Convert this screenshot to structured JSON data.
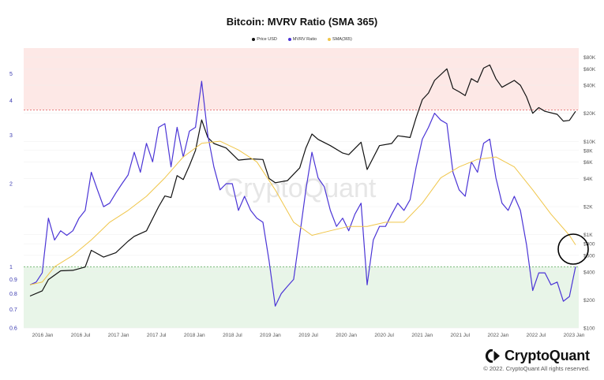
{
  "chart_data": {
    "type": "line",
    "title": "Bitcoin: MVRV Ratio (SMA 365)",
    "watermark": "CryptoQuant",
    "legend": [
      {
        "name": "Price USD",
        "color": "#111111"
      },
      {
        "name": "MVRV Ratio",
        "color": "#4b35d6"
      },
      {
        "name": "SMA(365)",
        "color": "#f0c64a"
      }
    ],
    "zones": [
      {
        "from": 3.7,
        "to": 6.2,
        "color": "#fde8e6",
        "line_color": "#e05555"
      },
      {
        "from": 0.6,
        "to": 1.0,
        "color": "#e8f5e8",
        "line_color": "#5aaa5a"
      }
    ],
    "x_ticks": [
      "2016 Jan",
      "2016 Jul",
      "2017 Jan",
      "2017 Jul",
      "2018 Jan",
      "2018 Jul",
      "2019 Jan",
      "2019 Jul",
      "2020 Jan",
      "2020 Jul",
      "2021 Jan",
      "2021 Jul",
      "2022 Jan",
      "2022 Jul",
      "2023 Jan"
    ],
    "x_range": [
      "2015-08",
      "2023-01"
    ],
    "y_left": {
      "label": "MVRV Ratio",
      "scale": "log",
      "range": [
        0.6,
        6.2
      ],
      "ticks": [
        {
          "v": 0.6,
          "l": "0.6"
        },
        {
          "v": 0.7,
          "l": "0.7"
        },
        {
          "v": 0.8,
          "l": "0.8"
        },
        {
          "v": 0.9,
          "l": "0.9"
        },
        {
          "v": 1,
          "l": "1"
        },
        {
          "v": 2,
          "l": "2"
        },
        {
          "v": 3,
          "l": "3"
        },
        {
          "v": 4,
          "l": "4"
        },
        {
          "v": 5,
          "l": "5"
        }
      ]
    },
    "y_right": {
      "label": "Price USD",
      "scale": "log",
      "range": [
        100,
        100000
      ],
      "ticks": [
        {
          "v": 100,
          "l": "$100"
        },
        {
          "v": 200,
          "l": "$200"
        },
        {
          "v": 400,
          "l": "$400"
        },
        {
          "v": 600,
          "l": "$600"
        },
        {
          "v": 800,
          "l": "$800"
        },
        {
          "v": 1000,
          "l": "$1K"
        },
        {
          "v": 2000,
          "l": "$2K"
        },
        {
          "v": 4000,
          "l": "$4K"
        },
        {
          "v": 6000,
          "l": "$6K"
        },
        {
          "v": 8000,
          "l": "$8K"
        },
        {
          "v": 10000,
          "l": "$10K"
        },
        {
          "v": 20000,
          "l": "$20K"
        },
        {
          "v": 40000,
          "l": "$40K"
        },
        {
          "v": 60000,
          "l": "$60K"
        },
        {
          "v": 80000,
          "l": "$80K"
        }
      ]
    },
    "series": [
      {
        "name": "Price USD",
        "axis": "right",
        "color": "#111111",
        "points": [
          [
            "2015-08",
            220
          ],
          [
            "2015-10",
            250
          ],
          [
            "2015-11",
            330
          ],
          [
            "2016-01",
            410
          ],
          [
            "2016-03",
            415
          ],
          [
            "2016-05",
            450
          ],
          [
            "2016-06",
            680
          ],
          [
            "2016-08",
            575
          ],
          [
            "2016-10",
            640
          ],
          [
            "2016-12",
            850
          ],
          [
            "2017-01",
            960
          ],
          [
            "2017-03",
            1100
          ],
          [
            "2017-05",
            2000
          ],
          [
            "2017-06",
            2600
          ],
          [
            "2017-07",
            2500
          ],
          [
            "2017-08",
            4300
          ],
          [
            "2017-09",
            3900
          ],
          [
            "2017-10",
            5500
          ],
          [
            "2017-11",
            8000
          ],
          [
            "2017-12",
            17000
          ],
          [
            "2018-01",
            11000
          ],
          [
            "2018-02",
            9500
          ],
          [
            "2018-04",
            8500
          ],
          [
            "2018-06",
            6300
          ],
          [
            "2018-08",
            6500
          ],
          [
            "2018-10",
            6400
          ],
          [
            "2018-11",
            4000
          ],
          [
            "2018-12",
            3600
          ],
          [
            "2019-02",
            3800
          ],
          [
            "2019-04",
            5200
          ],
          [
            "2019-05",
            8500
          ],
          [
            "2019-06",
            12000
          ],
          [
            "2019-07",
            10500
          ],
          [
            "2019-09",
            9000
          ],
          [
            "2019-11",
            7500
          ],
          [
            "2019-12",
            7200
          ],
          [
            "2020-02",
            9800
          ],
          [
            "2020-03",
            5000
          ],
          [
            "2020-05",
            9000
          ],
          [
            "2020-07",
            9500
          ],
          [
            "2020-08",
            11500
          ],
          [
            "2020-10",
            11000
          ],
          [
            "2020-11",
            18000
          ],
          [
            "2020-12",
            28000
          ],
          [
            "2021-01",
            33000
          ],
          [
            "2021-02",
            45000
          ],
          [
            "2021-04",
            60000
          ],
          [
            "2021-05",
            37000
          ],
          [
            "2021-06",
            34000
          ],
          [
            "2021-07",
            31000
          ],
          [
            "2021-08",
            47000
          ],
          [
            "2021-09",
            43000
          ],
          [
            "2021-10",
            61000
          ],
          [
            "2021-11",
            66000
          ],
          [
            "2021-12",
            47000
          ],
          [
            "2022-01",
            38000
          ],
          [
            "2022-03",
            45000
          ],
          [
            "2022-04",
            40000
          ],
          [
            "2022-05",
            30000
          ],
          [
            "2022-06",
            20000
          ],
          [
            "2022-07",
            23000
          ],
          [
            "2022-08",
            21000
          ],
          [
            "2022-10",
            19500
          ],
          [
            "2022-11",
            16500
          ],
          [
            "2022-12",
            16800
          ],
          [
            "2023-01",
            21000
          ]
        ]
      },
      {
        "name": "MVRV Ratio",
        "axis": "left",
        "color": "#4b35d6",
        "points": [
          [
            "2015-08",
            0.86
          ],
          [
            "2015-09",
            0.88
          ],
          [
            "2015-10",
            0.95
          ],
          [
            "2015-11",
            1.5
          ],
          [
            "2015-12",
            1.25
          ],
          [
            "2016-01",
            1.35
          ],
          [
            "2016-02",
            1.3
          ],
          [
            "2016-03",
            1.35
          ],
          [
            "2016-04",
            1.5
          ],
          [
            "2016-05",
            1.6
          ],
          [
            "2016-06",
            2.2
          ],
          [
            "2016-07",
            1.9
          ],
          [
            "2016-08",
            1.65
          ],
          [
            "2016-09",
            1.7
          ],
          [
            "2016-10",
            1.85
          ],
          [
            "2016-11",
            2.0
          ],
          [
            "2016-12",
            2.15
          ],
          [
            "2017-01",
            2.6
          ],
          [
            "2017-02",
            2.2
          ],
          [
            "2017-03",
            2.8
          ],
          [
            "2017-04",
            2.4
          ],
          [
            "2017-05",
            3.2
          ],
          [
            "2017-06",
            3.3
          ],
          [
            "2017-07",
            2.3
          ],
          [
            "2017-08",
            3.2
          ],
          [
            "2017-09",
            2.5
          ],
          [
            "2017-10",
            3.1
          ],
          [
            "2017-11",
            3.2
          ],
          [
            "2017-12",
            4.7
          ],
          [
            "2018-01",
            3.0
          ],
          [
            "2018-02",
            2.3
          ],
          [
            "2018-03",
            1.9
          ],
          [
            "2018-04",
            2.0
          ],
          [
            "2018-05",
            2.0
          ],
          [
            "2018-06",
            1.6
          ],
          [
            "2018-07",
            1.8
          ],
          [
            "2018-08",
            1.6
          ],
          [
            "2018-09",
            1.5
          ],
          [
            "2018-10",
            1.45
          ],
          [
            "2018-11",
            1.05
          ],
          [
            "2018-12",
            0.72
          ],
          [
            "2019-01",
            0.8
          ],
          [
            "2019-02",
            0.85
          ],
          [
            "2019-03",
            0.9
          ],
          [
            "2019-04",
            1.3
          ],
          [
            "2019-05",
            1.9
          ],
          [
            "2019-06",
            2.6
          ],
          [
            "2019-07",
            2.1
          ],
          [
            "2019-08",
            1.95
          ],
          [
            "2019-09",
            1.6
          ],
          [
            "2019-10",
            1.4
          ],
          [
            "2019-11",
            1.5
          ],
          [
            "2019-12",
            1.35
          ],
          [
            "2020-01",
            1.55
          ],
          [
            "2020-02",
            1.7
          ],
          [
            "2020-03",
            0.86
          ],
          [
            "2020-04",
            1.25
          ],
          [
            "2020-05",
            1.4
          ],
          [
            "2020-06",
            1.4
          ],
          [
            "2020-07",
            1.55
          ],
          [
            "2020-08",
            1.7
          ],
          [
            "2020-09",
            1.6
          ],
          [
            "2020-10",
            1.75
          ],
          [
            "2020-11",
            2.3
          ],
          [
            "2020-12",
            2.9
          ],
          [
            "2021-01",
            3.2
          ],
          [
            "2021-02",
            3.6
          ],
          [
            "2021-03",
            3.4
          ],
          [
            "2021-04",
            3.3
          ],
          [
            "2021-05",
            2.2
          ],
          [
            "2021-06",
            1.9
          ],
          [
            "2021-07",
            1.8
          ],
          [
            "2021-08",
            2.4
          ],
          [
            "2021-09",
            2.2
          ],
          [
            "2021-10",
            2.8
          ],
          [
            "2021-11",
            2.9
          ],
          [
            "2021-12",
            2.1
          ],
          [
            "2022-01",
            1.7
          ],
          [
            "2022-02",
            1.6
          ],
          [
            "2022-03",
            1.8
          ],
          [
            "2022-04",
            1.6
          ],
          [
            "2022-05",
            1.2
          ],
          [
            "2022-06",
            0.82
          ],
          [
            "2022-07",
            0.95
          ],
          [
            "2022-08",
            0.95
          ],
          [
            "2022-09",
            0.86
          ],
          [
            "2022-10",
            0.88
          ],
          [
            "2022-11",
            0.75
          ],
          [
            "2022-12",
            0.78
          ],
          [
            "2023-01",
            1.0
          ]
        ]
      },
      {
        "name": "SMA(365)",
        "axis": "left",
        "color": "#f0c64a",
        "points": [
          [
            "2015-08",
            0.86
          ],
          [
            "2015-10",
            0.88
          ],
          [
            "2015-12",
            1.0
          ],
          [
            "2016-03",
            1.1
          ],
          [
            "2016-06",
            1.25
          ],
          [
            "2016-09",
            1.45
          ],
          [
            "2016-12",
            1.6
          ],
          [
            "2017-03",
            1.8
          ],
          [
            "2017-06",
            2.1
          ],
          [
            "2017-09",
            2.5
          ],
          [
            "2017-12",
            2.8
          ],
          [
            "2018-03",
            2.85
          ],
          [
            "2018-06",
            2.65
          ],
          [
            "2018-09",
            2.4
          ],
          [
            "2018-12",
            1.9
          ],
          [
            "2019-03",
            1.45
          ],
          [
            "2019-06",
            1.3
          ],
          [
            "2019-09",
            1.35
          ],
          [
            "2019-12",
            1.4
          ],
          [
            "2020-03",
            1.4
          ],
          [
            "2020-06",
            1.45
          ],
          [
            "2020-09",
            1.45
          ],
          [
            "2020-12",
            1.7
          ],
          [
            "2021-03",
            2.1
          ],
          [
            "2021-06",
            2.3
          ],
          [
            "2021-09",
            2.45
          ],
          [
            "2021-12",
            2.5
          ],
          [
            "2022-03",
            2.3
          ],
          [
            "2022-06",
            1.9
          ],
          [
            "2022-09",
            1.55
          ],
          [
            "2022-12",
            1.3
          ],
          [
            "2023-01",
            1.2
          ]
        ]
      }
    ],
    "annotation": {
      "type": "circle",
      "near": "2023-01"
    }
  },
  "brand": {
    "name": "CryptoQuant",
    "copyright": "© 2022. CryptoQuant All rights reserved."
  }
}
